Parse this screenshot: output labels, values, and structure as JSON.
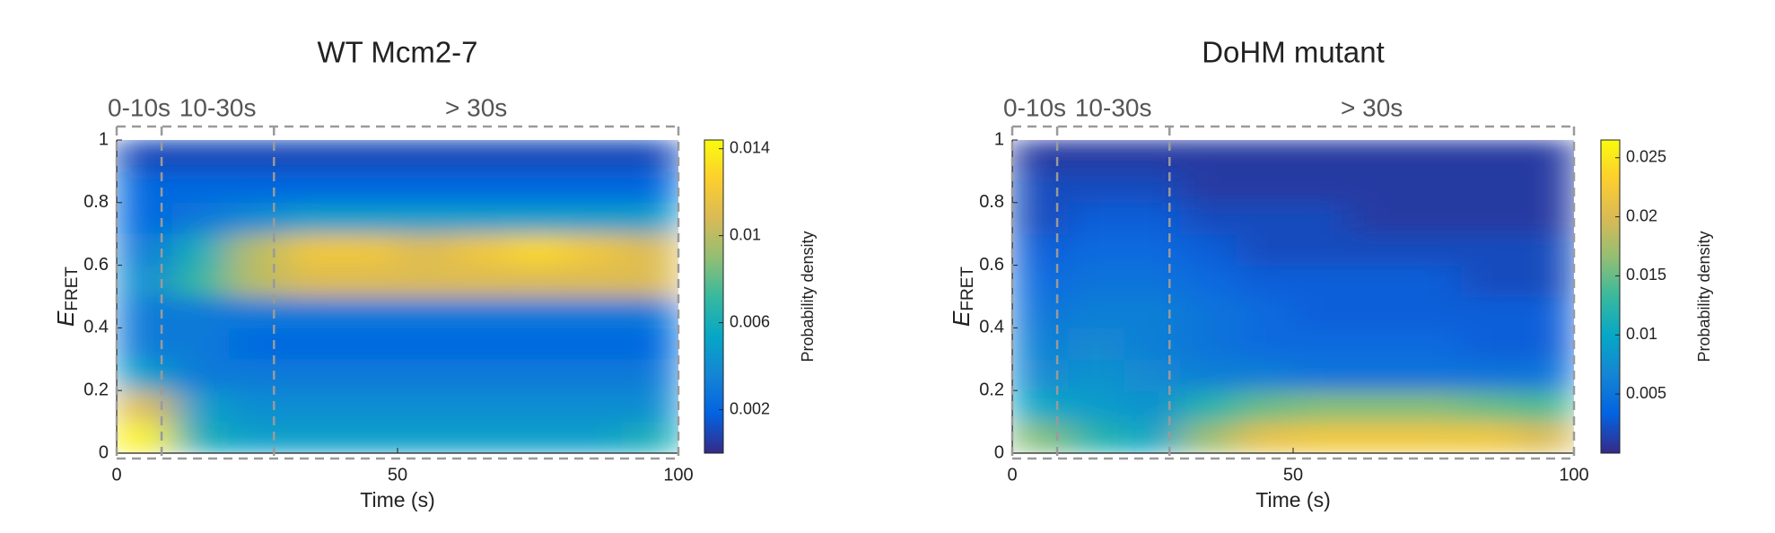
{
  "chart_data": [
    {
      "type": "heatmap",
      "title": "WT Mcm2-7",
      "regions": [
        {
          "label": "0-10s",
          "start": 0,
          "end": 8
        },
        {
          "label": "10-30s",
          "start": 8,
          "end": 28
        },
        {
          "label": "> 30s",
          "start": 28,
          "end": 100
        }
      ],
      "xlabel": "Time (s)",
      "ylabel": "E",
      "ylabel_sub": "FRET",
      "xlim": [
        0,
        100
      ],
      "ylim": [
        0,
        1
      ],
      "xticks": [
        0,
        50,
        100
      ],
      "yticks": [
        0,
        0.2,
        0.4,
        0.6,
        0.8,
        1
      ],
      "xbins": [
        0,
        10,
        20,
        30,
        40,
        50,
        60,
        70,
        80,
        90,
        100
      ],
      "ybins": [
        0,
        0.1,
        0.2,
        0.3,
        0.4,
        0.5,
        0.6,
        0.7,
        0.8,
        0.9,
        1
      ],
      "values": [
        [
          0.014,
          0.006,
          0.005,
          0.005,
          0.005,
          0.005,
          0.005,
          0.005,
          0.005,
          0.006
        ],
        [
          0.011,
          0.005,
          0.004,
          0.004,
          0.004,
          0.004,
          0.004,
          0.004,
          0.004,
          0.004
        ],
        [
          0.005,
          0.003,
          0.003,
          0.003,
          0.003,
          0.003,
          0.003,
          0.003,
          0.003,
          0.003
        ],
        [
          0.003,
          0.003,
          0.002,
          0.002,
          0.002,
          0.002,
          0.002,
          0.002,
          0.002,
          0.002
        ],
        [
          0.003,
          0.003,
          0.003,
          0.003,
          0.003,
          0.003,
          0.003,
          0.003,
          0.003,
          0.003
        ],
        [
          0.004,
          0.007,
          0.01,
          0.011,
          0.011,
          0.011,
          0.011,
          0.011,
          0.011,
          0.011
        ],
        [
          0.003,
          0.006,
          0.01,
          0.012,
          0.012,
          0.011,
          0.012,
          0.013,
          0.012,
          0.011
        ],
        [
          0.002,
          0.003,
          0.004,
          0.005,
          0.005,
          0.005,
          0.005,
          0.005,
          0.005,
          0.005
        ],
        [
          0.002,
          0.002,
          0.002,
          0.002,
          0.002,
          0.002,
          0.002,
          0.002,
          0.002,
          0.002
        ],
        [
          0.001,
          0.001,
          0.001,
          0.001,
          0.001,
          0.001,
          0.001,
          0.001,
          0.001,
          0.001
        ]
      ],
      "clim": [
        0,
        0.0144
      ],
      "cticks": [
        0.002,
        0.006,
        0.01,
        0.014
      ],
      "clabel": "Probability density",
      "colormap": [
        "#352a87",
        "#0363e1",
        "#1485d4",
        "#06a7c6",
        "#38b99e",
        "#92bf73",
        "#d9ba56",
        "#fcce2e",
        "#f9fb0e"
      ]
    },
    {
      "type": "heatmap",
      "title": "DoHM mutant",
      "regions": [
        {
          "label": "0-10s",
          "start": 0,
          "end": 8
        },
        {
          "label": "10-30s",
          "start": 8,
          "end": 28
        },
        {
          "label": "> 30s",
          "start": 28,
          "end": 100
        }
      ],
      "xlabel": "Time (s)",
      "ylabel": "E",
      "ylabel_sub": "FRET",
      "xlim": [
        0,
        100
      ],
      "ylim": [
        0,
        1
      ],
      "xticks": [
        0,
        50,
        100
      ],
      "yticks": [
        0,
        0.2,
        0.4,
        0.6,
        0.8,
        1
      ],
      "xbins": [
        0,
        10,
        20,
        30,
        40,
        50,
        60,
        70,
        80,
        90,
        100
      ],
      "ybins": [
        0,
        0.1,
        0.2,
        0.3,
        0.4,
        0.5,
        0.6,
        0.7,
        0.8,
        0.9,
        1
      ],
      "values": [
        [
          0.016,
          0.012,
          0.01,
          0.017,
          0.021,
          0.022,
          0.022,
          0.022,
          0.022,
          0.02
        ],
        [
          0.01,
          0.009,
          0.008,
          0.012,
          0.015,
          0.016,
          0.016,
          0.016,
          0.015,
          0.014
        ],
        [
          0.007,
          0.008,
          0.007,
          0.006,
          0.006,
          0.005,
          0.005,
          0.005,
          0.005,
          0.005
        ],
        [
          0.006,
          0.007,
          0.006,
          0.005,
          0.004,
          0.004,
          0.004,
          0.004,
          0.003,
          0.003
        ],
        [
          0.005,
          0.006,
          0.006,
          0.005,
          0.004,
          0.003,
          0.003,
          0.003,
          0.003,
          0.003
        ],
        [
          0.004,
          0.005,
          0.005,
          0.004,
          0.003,
          0.003,
          0.003,
          0.003,
          0.002,
          0.002
        ],
        [
          0.003,
          0.004,
          0.004,
          0.003,
          0.002,
          0.002,
          0.002,
          0.002,
          0.002,
          0.002
        ],
        [
          0.002,
          0.003,
          0.003,
          0.002,
          0.002,
          0.002,
          0.001,
          0.001,
          0.001,
          0.001
        ],
        [
          0.002,
          0.002,
          0.002,
          0.001,
          0.001,
          0.001,
          0.001,
          0.001,
          0.001,
          0.001
        ],
        [
          0.001,
          0.001,
          0.001,
          0.001,
          0.001,
          0.001,
          0.001,
          0.001,
          0.001,
          0.001
        ]
      ],
      "clim": [
        0,
        0.0265
      ],
      "cticks": [
        0.005,
        0.01,
        0.015,
        0.02,
        0.025
      ],
      "clabel": "Probability density",
      "colormap": [
        "#352a87",
        "#0363e1",
        "#1485d4",
        "#06a7c6",
        "#38b99e",
        "#92bf73",
        "#d9ba56",
        "#fcce2e",
        "#f9fb0e"
      ]
    }
  ]
}
